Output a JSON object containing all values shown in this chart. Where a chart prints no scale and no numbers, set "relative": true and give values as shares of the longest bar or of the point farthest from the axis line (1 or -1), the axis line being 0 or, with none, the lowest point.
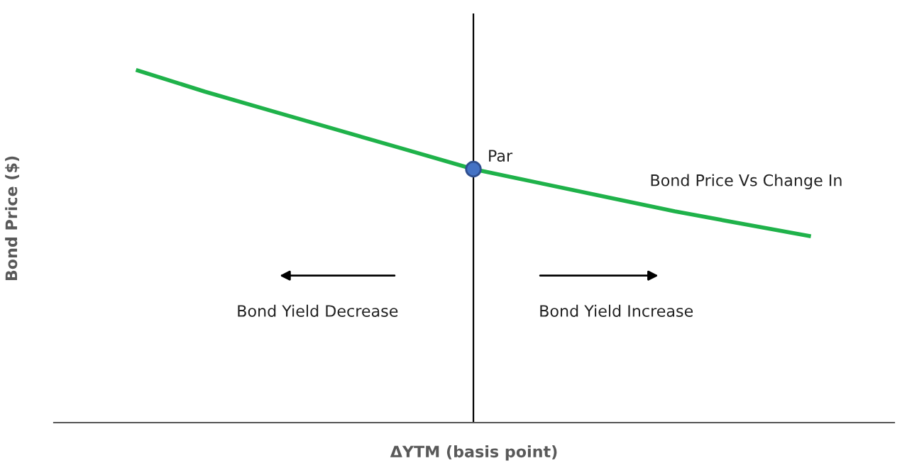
{
  "chart_data": {
    "type": "line",
    "relative": true,
    "xlabel": "ΔYTM (basis point)",
    "ylabel": "Bond Price ($)",
    "categories": [
      null,
      null,
      null,
      null,
      null,
      null,
      null,
      null,
      null,
      null,
      null
    ],
    "series": [
      {
        "color": "#1fb24a",
        "values": [
          1,
          0.94,
          0.885,
          0.83,
          0.775,
          0.72,
          0.68,
          0.64,
          0.6,
          0.565,
          0.53
        ]
      }
    ],
    "annotations": [
      {
        "text": "Par",
        "y": 0.72
      },
      "Bond Price Vs Change In",
      "Bond Yield Decrease",
      "Bond Yield Increase"
    ],
    "grid": false,
    "legend": false
  }
}
